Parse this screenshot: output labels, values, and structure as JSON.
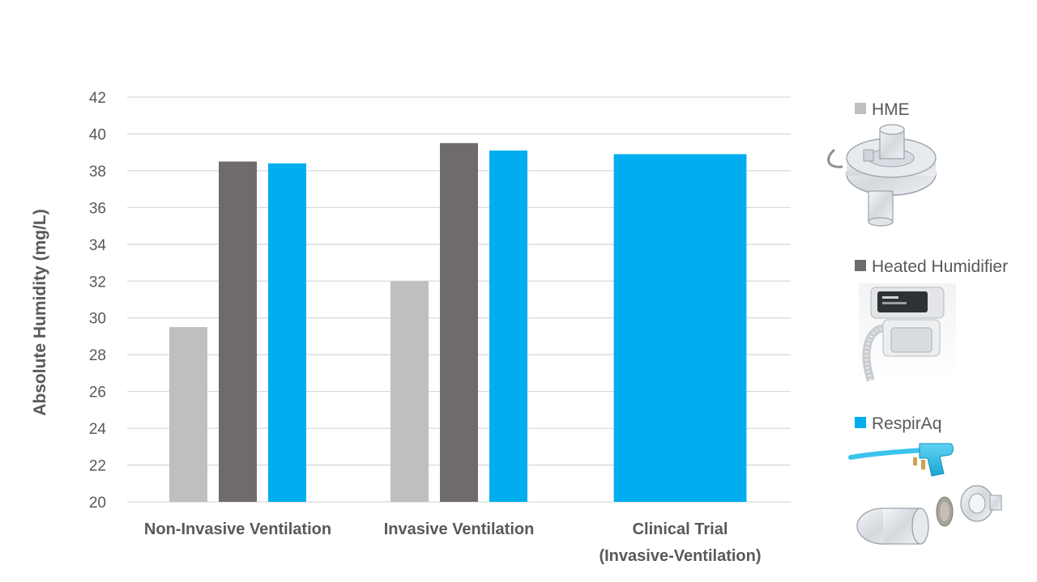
{
  "chart_data": {
    "type": "bar",
    "ylabel": "Absolute Humidity (mg/L)",
    "xlabel": "",
    "ylim": [
      20,
      42
    ],
    "yticks": [
      20,
      22,
      24,
      26,
      28,
      30,
      32,
      34,
      36,
      38,
      40,
      42
    ],
    "grid": true,
    "legend_position": "right",
    "categories": [
      [
        "Non-Invasive Ventilation"
      ],
      [
        "Invasive Ventilation"
      ],
      [
        "Clinical Trial",
        "(Invasive-Ventilation)"
      ]
    ],
    "series": [
      {
        "name": "HME",
        "color": "#bfbfbf",
        "values": [
          29.5,
          32.0,
          null
        ]
      },
      {
        "name": "Heated Humidifier",
        "color": "#6f6b6a",
        "values": [
          38.5,
          39.5,
          null
        ]
      },
      {
        "name": "RespirAq",
        "color": "#00aeef",
        "values": [
          38.4,
          39.1,
          38.9
        ]
      }
    ],
    "legend_images": [
      "hme-filter-image",
      "heated-humidifier-device-image",
      "respiraq-device-image"
    ]
  }
}
